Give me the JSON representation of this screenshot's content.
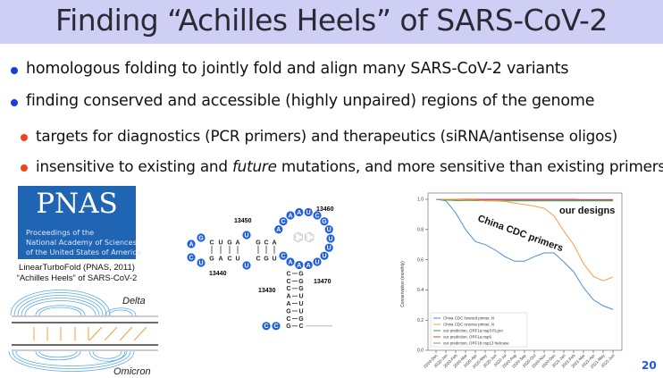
{
  "slide": {
    "title": "Finding “Achilles Heels” of SARS-CoV-2",
    "bullets": [
      {
        "text": "homologous folding to jointly fold and align many SARS-CoV-2 variants",
        "level": 1,
        "color": "#1a3be0"
      },
      {
        "text": "finding conserved and accessible (highly unpaired) regions of the genome",
        "level": 1,
        "color": "#1a3be0"
      },
      {
        "text": "targets for diagnostics (PCR primers) and therapeutics (siRNA/antisense oligos)",
        "level": 2,
        "color": "#ee4422"
      },
      {
        "pre": "insensitive to existing and ",
        "em": "future",
        "post": " mutations, and more sensitive than existing primers",
        "level": 2,
        "color": "#ee4422"
      }
    ],
    "page_number": "20"
  },
  "pnas": {
    "logo_text": "PNAS",
    "subtitle_lines": [
      "Proceedings of the",
      "National Academy of Sciences",
      "of the United States of America"
    ],
    "caption_lines": [
      "LinearTurboFold (PNAS, 2011)",
      "“Achilles Heels” of SARS-CoV-2"
    ]
  },
  "variants_figure": {
    "top_label": "Delta",
    "bottom_label": "Omicron"
  },
  "rna_structure": {
    "position_labels": {
      "p13430": "13430",
      "p13440": "13440",
      "p13450": "13450",
      "p13460": "13460",
      "p13470": "13470"
    },
    "hairpin_left": [
      "A",
      "G",
      "C",
      "U"
    ],
    "left_helix_top": [
      "C",
      "U",
      "G",
      "A",
      "U",
      "G",
      "C",
      "A"
    ],
    "left_helix_bottom": [
      "G",
      "A",
      "C",
      "U",
      "U",
      "C",
      "G",
      "U"
    ],
    "loop": [
      "A",
      "C",
      "A",
      "A",
      "U",
      "C",
      "G",
      "U",
      "U",
      "U",
      "U",
      "U",
      "A",
      "A",
      "A",
      "C"
    ],
    "stem_pairs": [
      [
        "C",
        "G"
      ],
      [
        "C",
        "G"
      ],
      [
        "C",
        "G"
      ],
      [
        "A",
        "U"
      ],
      [
        "A",
        "U"
      ],
      [
        "G",
        "U"
      ],
      [
        "C",
        "G"
      ],
      [
        "G",
        "C"
      ]
    ],
    "tail": [
      "C",
      "C"
    ],
    "unpaired_color": "#1f5fe0"
  },
  "chart_data": {
    "type": "line",
    "title": "",
    "xlabel": "",
    "ylabel": "Conservation (monthly)",
    "ylim": [
      0.0,
      1.0
    ],
    "yticks": [
      "0.0",
      "0.2",
      "0.4",
      "0.6",
      "0.8",
      "1.0"
    ],
    "categories": [
      "2019-Dec",
      "2020-Jan",
      "2020-Feb",
      "2020-Mar",
      "2020-Apr",
      "2020-May",
      "2020-Jun",
      "2020-Jul",
      "2020-Aug",
      "2020-Sep",
      "2020-Oct",
      "2020-Nov",
      "2020-Dec",
      "2021-Jan",
      "2021-Feb",
      "2021-Mar",
      "2021-Apr",
      "2021-May",
      "2021-Jun"
    ],
    "grid": false,
    "legend_position": "bottom-left",
    "annotations": [
      "our designs",
      "China CDC primers"
    ],
    "series": [
      {
        "name": "China CDC forword primer, N",
        "color": "#4a90d0",
        "values": [
          1.0,
          0.99,
          0.91,
          0.8,
          0.72,
          0.7,
          0.665,
          0.62,
          0.59,
          0.59,
          0.62,
          0.645,
          0.645,
          0.585,
          0.52,
          0.415,
          0.335,
          0.295,
          0.27
        ]
      },
      {
        "name": "China CDC reverse primer, N",
        "color": "#f5a040",
        "values": [
          1.0,
          1.0,
          1.0,
          0.995,
          0.995,
          0.99,
          0.99,
          0.985,
          0.975,
          0.965,
          0.955,
          0.94,
          0.89,
          0.79,
          0.7,
          0.575,
          0.49,
          0.46,
          0.485
        ]
      },
      {
        "name": "our prediction, ORF1a nsp3 PLpro",
        "color": "#3aa040",
        "values": [
          1.0,
          0.995,
          0.992,
          0.992,
          0.991,
          0.991,
          0.99,
          0.99,
          0.99,
          0.99,
          0.99,
          0.99,
          0.99,
          0.99,
          0.99,
          0.99,
          0.99,
          0.99,
          0.99
        ]
      },
      {
        "name": "our prediction, ORF1a nsp6",
        "color": "#d84040",
        "values": [
          1.0,
          1.0,
          1.0,
          1.0,
          1.0,
          1.0,
          1.0,
          1.0,
          1.0,
          1.0,
          1.0,
          1.0,
          1.0,
          1.0,
          1.0,
          0.998,
          0.998,
          0.998,
          0.998
        ]
      },
      {
        "name": "our prediction, ORF1b nsp13 helicase",
        "color": "#a070c8",
        "values": [
          1.0,
          0.998,
          0.997,
          0.997,
          0.996,
          0.996,
          0.996,
          0.996,
          0.995,
          0.995,
          0.995,
          0.995,
          0.995,
          0.995,
          0.995,
          0.995,
          0.995,
          0.995,
          0.995
        ]
      }
    ]
  }
}
